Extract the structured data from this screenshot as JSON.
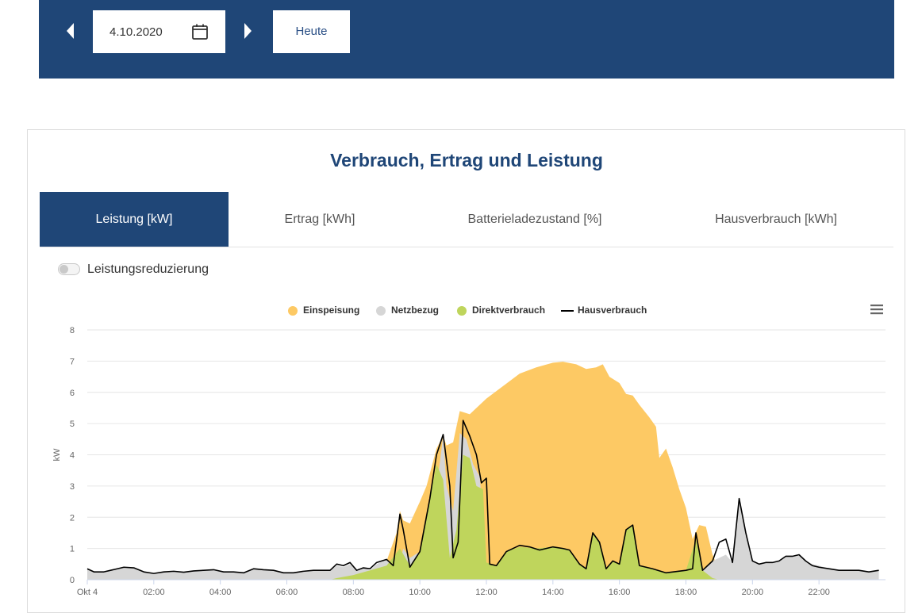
{
  "toolbar": {
    "date_value": "4.10.2020",
    "today_label": "Heute"
  },
  "panel": {
    "title": "Verbrauch, Ertrag und Leistung",
    "tabs": [
      {
        "label": "Leistung [kW]",
        "active": true
      },
      {
        "label": "Ertrag [kWh]",
        "active": false
      },
      {
        "label": "Batterieladezustand [%]",
        "active": false
      },
      {
        "label": "Hausverbrauch [kWh]",
        "active": false
      }
    ],
    "toggle_label": "Leistungsreduzierung",
    "menu_icon": "hamburger-menu-icon"
  },
  "colors": {
    "header_blue": "#1f4677",
    "einspeisung": "#fdc964",
    "netzbezug": "#d6d6d6",
    "direktverbrauch": "#bfd55c",
    "hausverbrauch": "#000000"
  },
  "chart_data": {
    "type": "area",
    "title": "",
    "xlabel": "",
    "ylabel": "kW",
    "ylim": [
      0,
      8
    ],
    "xlim": [
      0,
      24
    ],
    "grid": true,
    "legend_position": "top-center",
    "y_ticks": [
      "0",
      "1",
      "2",
      "3",
      "4",
      "5",
      "6",
      "7",
      "8"
    ],
    "x_ticks": [
      {
        "x": 0,
        "label": "Okt 4"
      },
      {
        "x": 2,
        "label": "02:00"
      },
      {
        "x": 4,
        "label": "04:00"
      },
      {
        "x": 6,
        "label": "06:00"
      },
      {
        "x": 8,
        "label": "08:00"
      },
      {
        "x": 10,
        "label": "10:00"
      },
      {
        "x": 12,
        "label": "12:00"
      },
      {
        "x": 14,
        "label": "14:00"
      },
      {
        "x": 16,
        "label": "16:00"
      },
      {
        "x": 18,
        "label": "18:00"
      },
      {
        "x": 20,
        "label": "20:00"
      },
      {
        "x": 22,
        "label": "22:00"
      }
    ],
    "series": [
      {
        "name": "Einspeisung",
        "color": "#fdc964",
        "points": [
          [
            7.3,
            0
          ],
          [
            7.5,
            0.05
          ],
          [
            8,
            0.15
          ],
          [
            8.5,
            0.3
          ],
          [
            9,
            0.6
          ],
          [
            9.3,
            1.5
          ],
          [
            9.4,
            2.2
          ],
          [
            9.5,
            1.9
          ],
          [
            9.7,
            1.8
          ],
          [
            10,
            2.5
          ],
          [
            10.2,
            3
          ],
          [
            10.5,
            4.2
          ],
          [
            10.7,
            4.6
          ],
          [
            10.8,
            4.3
          ],
          [
            11,
            4.4
          ],
          [
            11.2,
            5.4
          ],
          [
            11.5,
            5.3
          ],
          [
            11.8,
            5.6
          ],
          [
            12,
            5.8
          ],
          [
            12.5,
            6.2
          ],
          [
            13,
            6.6
          ],
          [
            13.5,
            6.8
          ],
          [
            14,
            6.95
          ],
          [
            14.3,
            6.98
          ],
          [
            14.7,
            6.9
          ],
          [
            15,
            6.75
          ],
          [
            15.3,
            6.8
          ],
          [
            15.5,
            6.9
          ],
          [
            15.7,
            6.5
          ],
          [
            16,
            6.3
          ],
          [
            16.2,
            5.95
          ],
          [
            16.4,
            5.9
          ],
          [
            16.6,
            5.6
          ],
          [
            16.9,
            5.2
          ],
          [
            17.1,
            4.9
          ],
          [
            17.2,
            3.9
          ],
          [
            17.4,
            4.2
          ],
          [
            17.6,
            3.6
          ],
          [
            17.8,
            2.9
          ],
          [
            18,
            2.3
          ],
          [
            18.2,
            1.3
          ],
          [
            18.4,
            1.75
          ],
          [
            18.6,
            1.7
          ],
          [
            18.8,
            0.8
          ],
          [
            19.0,
            0.3
          ],
          [
            19.1,
            0
          ]
        ]
      },
      {
        "name": "Netzbezug",
        "values_note": "",
        "color": "#d6d6d6",
        "points": [
          [
            0,
            0.35
          ],
          [
            0.2,
            0.25
          ],
          [
            0.5,
            0.25
          ],
          [
            0.7,
            0.3
          ],
          [
            0.9,
            0.35
          ],
          [
            1.1,
            0.4
          ],
          [
            1.4,
            0.38
          ],
          [
            1.7,
            0.25
          ],
          [
            2.0,
            0.2
          ],
          [
            2.3,
            0.25
          ],
          [
            2.6,
            0.27
          ],
          [
            2.9,
            0.24
          ],
          [
            3.2,
            0.28
          ],
          [
            3.5,
            0.3
          ],
          [
            3.8,
            0.32
          ],
          [
            4.1,
            0.25
          ],
          [
            4.4,
            0.25
          ],
          [
            4.7,
            0.22
          ],
          [
            5.0,
            0.35
          ],
          [
            5.3,
            0.32
          ],
          [
            5.6,
            0.3
          ],
          [
            5.9,
            0.22
          ],
          [
            6.2,
            0.22
          ],
          [
            6.5,
            0.27
          ],
          [
            6.8,
            0.3
          ],
          [
            7.1,
            0.3
          ],
          [
            7.3,
            0.3
          ],
          [
            7.5,
            0.45
          ],
          [
            7.7,
            0.4
          ],
          [
            7.9,
            0.5
          ],
          [
            8.1,
            0.3
          ],
          [
            8.3,
            0.38
          ],
          [
            8.5,
            0.3
          ],
          [
            8.7,
            0.5
          ],
          [
            9.0,
            0.65
          ],
          [
            9.2,
            0.5
          ],
          [
            9.4,
            0.55
          ],
          [
            9.5,
            1.0
          ],
          [
            9.7,
            0.7
          ],
          [
            10.0,
            0.9
          ],
          [
            10.5,
            2.9
          ],
          [
            10.7,
            4.6
          ],
          [
            10.8,
            3.0
          ],
          [
            11.0,
            2.2
          ],
          [
            11.2,
            4.7
          ],
          [
            11.4,
            4.5
          ],
          [
            11.6,
            3.7
          ],
          [
            11.8,
            3.3
          ],
          [
            12.0,
            0.5
          ],
          [
            12.2,
            0.4
          ],
          [
            12.5,
            0.2
          ],
          [
            13,
            0.2
          ],
          [
            14,
            0.2
          ],
          [
            15,
            0.2
          ],
          [
            16,
            0.2
          ],
          [
            17,
            0.2
          ],
          [
            17.5,
            0.22
          ],
          [
            18.0,
            0.3
          ],
          [
            18.3,
            0.35
          ],
          [
            18.5,
            0.3
          ],
          [
            18.8,
            0.6
          ],
          [
            19.0,
            0.7
          ],
          [
            19.2,
            0.8
          ],
          [
            19.4,
            0.55
          ],
          [
            19.6,
            2.6
          ],
          [
            19.8,
            1.5
          ],
          [
            20.0,
            0.6
          ],
          [
            20.2,
            0.5
          ],
          [
            20.4,
            0.55
          ],
          [
            20.6,
            0.55
          ],
          [
            20.8,
            0.6
          ],
          [
            21.0,
            0.75
          ],
          [
            21.2,
            0.75
          ],
          [
            21.4,
            0.8
          ],
          [
            21.6,
            0.6
          ],
          [
            21.8,
            0.5
          ],
          [
            22.0,
            0.45
          ],
          [
            22.3,
            0.35
          ],
          [
            22.6,
            0.3
          ],
          [
            22.9,
            0.3
          ],
          [
            23.2,
            0.3
          ],
          [
            23.5,
            0.25
          ],
          [
            23.8,
            0.3
          ]
        ]
      },
      {
        "name": "Direktverbrauch",
        "color": "#bfd55c",
        "points": [
          [
            7.3,
            0
          ],
          [
            7.5,
            0.05
          ],
          [
            8,
            0.15
          ],
          [
            8.5,
            0.3
          ],
          [
            9,
            0.45
          ],
          [
            9.4,
            1.0
          ],
          [
            9.7,
            0.45
          ],
          [
            10,
            0.9
          ],
          [
            10.3,
            2.6
          ],
          [
            10.5,
            3.7
          ],
          [
            10.7,
            3.2
          ],
          [
            10.9,
            0.7
          ],
          [
            11.1,
            1.6
          ],
          [
            11.3,
            4.0
          ],
          [
            11.5,
            3.9
          ],
          [
            11.7,
            3.0
          ],
          [
            11.9,
            2.9
          ],
          [
            12.0,
            0.55
          ],
          [
            12.3,
            0.45
          ],
          [
            12.6,
            0.9
          ],
          [
            13,
            1.05
          ],
          [
            13.5,
            1.0
          ],
          [
            14,
            1.05
          ],
          [
            14.5,
            0.95
          ],
          [
            14.8,
            0.5
          ],
          [
            15.0,
            0.35
          ],
          [
            15.2,
            1.5
          ],
          [
            15.4,
            1.2
          ],
          [
            15.6,
            0.35
          ],
          [
            15.8,
            0.6
          ],
          [
            16.0,
            0.5
          ],
          [
            16.2,
            1.6
          ],
          [
            16.4,
            1.75
          ],
          [
            16.6,
            0.45
          ],
          [
            17.0,
            0.35
          ],
          [
            17.4,
            0.2
          ],
          [
            18.0,
            0.3
          ],
          [
            18.3,
            1.3
          ],
          [
            18.5,
            0.3
          ],
          [
            18.8,
            0.05
          ],
          [
            19.0,
            0
          ]
        ]
      },
      {
        "name": "Hausverbrauch",
        "color": "#000000",
        "points": [
          [
            0,
            0.35
          ],
          [
            0.2,
            0.25
          ],
          [
            0.5,
            0.25
          ],
          [
            0.7,
            0.3
          ],
          [
            0.9,
            0.35
          ],
          [
            1.1,
            0.4
          ],
          [
            1.4,
            0.38
          ],
          [
            1.7,
            0.25
          ],
          [
            2.0,
            0.2
          ],
          [
            2.3,
            0.25
          ],
          [
            2.6,
            0.27
          ],
          [
            2.9,
            0.24
          ],
          [
            3.2,
            0.28
          ],
          [
            3.5,
            0.3
          ],
          [
            3.8,
            0.32
          ],
          [
            4.1,
            0.25
          ],
          [
            4.4,
            0.25
          ],
          [
            4.7,
            0.22
          ],
          [
            5.0,
            0.35
          ],
          [
            5.3,
            0.32
          ],
          [
            5.6,
            0.3
          ],
          [
            5.9,
            0.22
          ],
          [
            6.2,
            0.22
          ],
          [
            6.5,
            0.27
          ],
          [
            6.8,
            0.3
          ],
          [
            7.1,
            0.3
          ],
          [
            7.3,
            0.3
          ],
          [
            7.5,
            0.5
          ],
          [
            7.7,
            0.45
          ],
          [
            7.9,
            0.55
          ],
          [
            8.1,
            0.3
          ],
          [
            8.3,
            0.38
          ],
          [
            8.5,
            0.35
          ],
          [
            8.7,
            0.55
          ],
          [
            9.0,
            0.65
          ],
          [
            9.2,
            0.45
          ],
          [
            9.4,
            2.1
          ],
          [
            9.5,
            1.6
          ],
          [
            9.7,
            0.4
          ],
          [
            10.0,
            0.9
          ],
          [
            10.3,
            2.6
          ],
          [
            10.5,
            4.0
          ],
          [
            10.7,
            4.65
          ],
          [
            10.9,
            3.0
          ],
          [
            11.0,
            0.7
          ],
          [
            11.15,
            1.2
          ],
          [
            11.3,
            5.1
          ],
          [
            11.5,
            4.6
          ],
          [
            11.7,
            4.0
          ],
          [
            11.85,
            3.1
          ],
          [
            12.0,
            3.25
          ],
          [
            12.1,
            0.5
          ],
          [
            12.3,
            0.45
          ],
          [
            12.6,
            0.9
          ],
          [
            13,
            1.1
          ],
          [
            13.3,
            1.05
          ],
          [
            13.6,
            0.95
          ],
          [
            14,
            1.05
          ],
          [
            14.3,
            1.0
          ],
          [
            14.5,
            0.95
          ],
          [
            14.8,
            0.5
          ],
          [
            15.0,
            0.35
          ],
          [
            15.2,
            1.5
          ],
          [
            15.4,
            1.2
          ],
          [
            15.6,
            0.35
          ],
          [
            15.8,
            0.6
          ],
          [
            16.0,
            0.5
          ],
          [
            16.2,
            1.6
          ],
          [
            16.4,
            1.75
          ],
          [
            16.6,
            0.45
          ],
          [
            17.0,
            0.35
          ],
          [
            17.4,
            0.22
          ],
          [
            18.0,
            0.3
          ],
          [
            18.2,
            0.35
          ],
          [
            18.3,
            1.5
          ],
          [
            18.5,
            0.3
          ],
          [
            18.8,
            0.6
          ],
          [
            19.0,
            1.2
          ],
          [
            19.2,
            1.3
          ],
          [
            19.4,
            0.55
          ],
          [
            19.6,
            2.6
          ],
          [
            19.8,
            1.5
          ],
          [
            20.0,
            0.6
          ],
          [
            20.2,
            0.5
          ],
          [
            20.4,
            0.55
          ],
          [
            20.6,
            0.55
          ],
          [
            20.8,
            0.6
          ],
          [
            21.0,
            0.75
          ],
          [
            21.2,
            0.75
          ],
          [
            21.4,
            0.8
          ],
          [
            21.6,
            0.6
          ],
          [
            21.8,
            0.45
          ],
          [
            22.0,
            0.4
          ],
          [
            22.3,
            0.35
          ],
          [
            22.6,
            0.3
          ],
          [
            22.9,
            0.3
          ],
          [
            23.2,
            0.3
          ],
          [
            23.5,
            0.25
          ],
          [
            23.8,
            0.3
          ]
        ]
      }
    ]
  }
}
